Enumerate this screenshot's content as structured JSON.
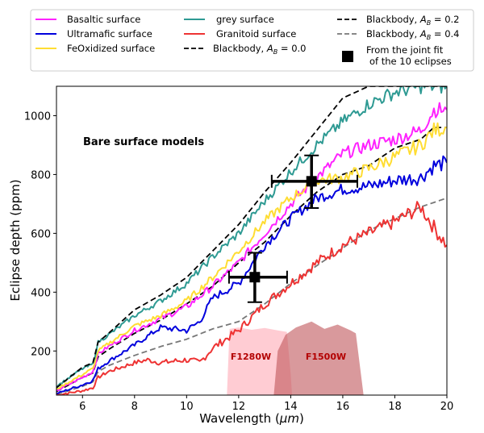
{
  "chart_data": {
    "type": "line",
    "title": "",
    "xlabel": "Wavelength (μm)",
    "xlabel_parts": {
      "prefix": "Wavelength (",
      "mu": "μm",
      "suffix": ")"
    },
    "ylabel": "Eclipse depth (ppm)",
    "xlim": [
      5,
      20
    ],
    "ylim": [
      50,
      1100
    ],
    "x_ticks": [
      6,
      8,
      10,
      12,
      14,
      16,
      18,
      20
    ],
    "x_tick_labels": [
      "6",
      "8",
      "10",
      "12",
      "14",
      "16",
      "18",
      "20"
    ],
    "y_ticks": [
      200,
      400,
      600,
      800,
      1000
    ],
    "y_tick_labels": [
      "200",
      "400",
      "600",
      "800",
      "1000"
    ],
    "grid": false,
    "annotation": "Bare surface models",
    "legend_placement": "top (outside, above plot)",
    "series": [
      {
        "name": "Basaltic surface",
        "key": "basaltic",
        "color": "#ff22ff",
        "style": "solid",
        "x": [
          5,
          6,
          6.4,
          6.6,
          7,
          8,
          9,
          10,
          11,
          12,
          13,
          14,
          15,
          16,
          17,
          18,
          19,
          19.5,
          20
        ],
        "y": [
          65,
          110,
          130,
          190,
          215,
          270,
          310,
          350,
          420,
          500,
          600,
          700,
          790,
          870,
          900,
          920,
          950,
          1020,
          1020
        ]
      },
      {
        "name": "Ultramafic surface",
        "key": "ultramafic",
        "color": "#0000dd",
        "style": "solid",
        "x": [
          5,
          6,
          6.4,
          6.6,
          7,
          8,
          9,
          10,
          10.5,
          11,
          12,
          13,
          14,
          15,
          16,
          17,
          18,
          19,
          19.5,
          20
        ],
        "y": [
          55,
          85,
          100,
          140,
          165,
          220,
          280,
          270,
          300,
          380,
          430,
          560,
          650,
          720,
          750,
          760,
          780,
          790,
          830,
          840
        ]
      },
      {
        "name": "FeOxidized surface",
        "key": "feoxidized",
        "color": "#ffdd33",
        "style": "solid",
        "x": [
          5,
          6,
          6.4,
          6.6,
          7,
          8,
          9,
          10,
          11,
          12,
          13,
          14,
          15,
          16,
          17,
          18,
          19,
          19.5,
          20
        ],
        "y": [
          70,
          120,
          140,
          200,
          225,
          285,
          320,
          370,
          450,
          540,
          640,
          720,
          780,
          790,
          820,
          860,
          900,
          950,
          960
        ]
      },
      {
        "name": "grey surface",
        "key": "grey",
        "color": "#2e9a93",
        "style": "solid",
        "x": [
          5,
          6,
          6.4,
          6.6,
          7,
          8,
          9,
          10,
          11,
          12,
          13,
          14,
          15,
          16,
          17,
          18,
          19,
          19.5,
          20
        ],
        "y": [
          80,
          140,
          155,
          230,
          255,
          320,
          370,
          430,
          520,
          600,
          710,
          810,
          900,
          980,
          1040,
          1080,
          1100,
          1100,
          1100
        ]
      },
      {
        "name": "Granitoid surface",
        "key": "granitoid",
        "color": "#ee3333",
        "style": "solid",
        "x": [
          5,
          6,
          6.4,
          6.6,
          7,
          8,
          8.5,
          9,
          10,
          10.5,
          11,
          12,
          13,
          14,
          15,
          16,
          17,
          18,
          19,
          19.5,
          20
        ],
        "y": [
          50,
          65,
          75,
          110,
          130,
          160,
          170,
          160,
          170,
          160,
          210,
          270,
          360,
          430,
          500,
          560,
          600,
          640,
          690,
          620,
          560
        ]
      },
      {
        "name": "Blackbody, A_B = 0.0",
        "key": "bb00",
        "color": "#000000",
        "style": "dashed",
        "x": [
          5,
          6,
          6.4,
          6.6,
          7,
          8,
          9,
          10,
          11,
          12,
          13,
          14,
          15,
          16,
          17,
          18,
          19,
          20
        ],
        "y": [
          75,
          145,
          160,
          230,
          260,
          340,
          390,
          450,
          540,
          630,
          740,
          840,
          950,
          1060,
          1100,
          1100,
          1100,
          1100
        ]
      },
      {
        "name": "Blackbody, A_B = 0.2",
        "key": "bb02",
        "color": "#000000",
        "style": "dashed",
        "x": [
          5,
          6,
          6.4,
          6.6,
          7,
          8,
          9,
          10,
          11,
          12,
          13,
          14,
          15,
          16,
          17,
          18,
          19,
          19.5,
          20
        ],
        "y": [
          62,
          110,
          125,
          180,
          205,
          260,
          305,
          360,
          420,
          500,
          570,
          660,
          740,
          800,
          830,
          890,
          920,
          960,
          960
        ]
      },
      {
        "name": "Blackbody, A_B = 0.4",
        "key": "bb04",
        "color": "#777777",
        "style": "dashed",
        "x": [
          5,
          6,
          6.4,
          6.6,
          7,
          8,
          9,
          10,
          11,
          12,
          13,
          14,
          15,
          16,
          17,
          18,
          19,
          20
        ],
        "y": [
          52,
          80,
          95,
          130,
          150,
          185,
          215,
          240,
          275,
          300,
          360,
          430,
          490,
          550,
          610,
          650,
          690,
          720
        ]
      }
    ],
    "points": {
      "name": "From the joint fit of the 10 eclipses",
      "name_line1": "From the joint fit",
      "name_line2": "of the 10 eclipses",
      "color": "#000000",
      "data": [
        {
          "x": 12.62,
          "y": 451,
          "xerr": [
            11.63,
            13.86
          ],
          "yerr": [
            366,
            534
          ]
        },
        {
          "x": 14.8,
          "y": 777,
          "xerr": [
            13.27,
            16.56
          ],
          "yerr": [
            686,
            865
          ]
        }
      ]
    },
    "filter_bands": [
      {
        "name": "F1280W",
        "color": "#ffb6c1",
        "opacity": 0.7,
        "x": [
          11.55,
          11.65,
          12.0,
          12.5,
          13.0,
          13.5,
          13.85,
          14.0,
          14.05
        ],
        "y": [
          50,
          275,
          280,
          272,
          278,
          270,
          265,
          120,
          50
        ]
      },
      {
        "name": "F1500W",
        "color": "#c0555a",
        "opacity": 0.6,
        "x": [
          13.35,
          13.5,
          13.8,
          14.2,
          14.8,
          15.3,
          15.8,
          16.3,
          16.5,
          16.8
        ],
        "y": [
          50,
          200,
          255,
          280,
          300,
          275,
          290,
          270,
          260,
          50
        ]
      }
    ]
  }
}
